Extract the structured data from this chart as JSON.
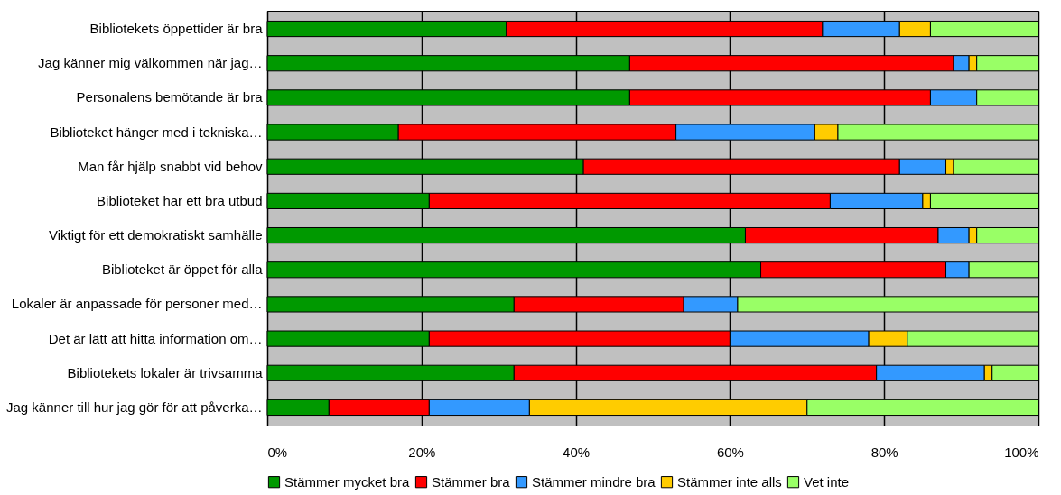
{
  "chart_data": {
    "type": "bar",
    "orientation": "horizontal",
    "stacked": true,
    "categories": [
      "Bibliotekets öppettider är bra",
      "Jag känner mig välkommen när jag…",
      "Personalens bemötande är bra",
      "Biblioteket hänger med i tekniska…",
      "Man får hjälp snabbt vid behov",
      "Biblioteket har ett bra utbud",
      "Viktigt för ett demokratiskt samhälle",
      "Biblioteket är öppet för alla",
      "Lokaler är anpassade för personer med…",
      "Det är lätt att hitta information om…",
      "Bibliotekets lokaler är trivsamma",
      "Jag känner till hur jag gör för att påverka…"
    ],
    "series": [
      {
        "name": "Stämmer mycket bra",
        "color": "#009900",
        "values": [
          31,
          47,
          47,
          17,
          41,
          21,
          62,
          64,
          32,
          21,
          32,
          8
        ]
      },
      {
        "name": "Stämmer bra",
        "color": "#ff0000",
        "values": [
          41,
          42,
          39,
          36,
          41,
          52,
          25,
          24,
          22,
          39,
          47,
          13
        ]
      },
      {
        "name": "Stämmer mindre bra",
        "color": "#3399ff",
        "values": [
          10,
          2,
          6,
          18,
          6,
          12,
          4,
          3,
          7,
          18,
          14,
          13
        ]
      },
      {
        "name": "Stämmer inte alls",
        "color": "#ffcc00",
        "values": [
          4,
          1,
          0,
          3,
          1,
          1,
          1,
          0,
          0,
          5,
          1,
          36
        ]
      },
      {
        "name": "Vet inte",
        "color": "#99ff66",
        "values": [
          14,
          8,
          8,
          26,
          11,
          14,
          8,
          9,
          39,
          17,
          6,
          30
        ]
      }
    ],
    "xlim": [
      0,
      100
    ],
    "xticks": [
      {
        "value": 0,
        "label": "0%"
      },
      {
        "value": 20,
        "label": "20%"
      },
      {
        "value": 40,
        "label": "40%"
      },
      {
        "value": 60,
        "label": "60%"
      },
      {
        "value": 80,
        "label": "80%"
      },
      {
        "value": 100,
        "label": "100%"
      }
    ],
    "grid": "x",
    "legend": "bottom"
  }
}
